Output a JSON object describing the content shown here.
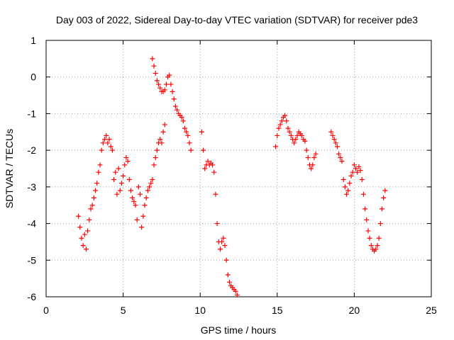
{
  "chart_data": {
    "type": "scatter",
    "title": "Day 003 of 2022, Sidereal Day-to-day VTEC variation (SDTVAR) for receiver pde3",
    "xlabel": "GPS time / hours",
    "ylabel": "SDTVAR / TECUs",
    "xlim": [
      0,
      25
    ],
    "ylim": [
      -6,
      1
    ],
    "x_ticks": [
      0,
      5,
      10,
      15,
      20,
      25
    ],
    "x_tick_labels": [
      "0",
      "5",
      "10",
      "15",
      "20",
      "25"
    ],
    "y_ticks": [
      1,
      0,
      -1,
      -2,
      -3,
      -4,
      -5,
      -6
    ],
    "y_tick_labels": [
      "1",
      "0",
      "-1",
      "-2",
      "-3",
      "-4",
      "-5",
      "-6"
    ],
    "grid": true,
    "marker": "+",
    "color": "#ff0000",
    "series": [
      {
        "name": "SDTVAR",
        "points": [
          [
            2.1,
            -3.8
          ],
          [
            2.2,
            -4.1
          ],
          [
            2.3,
            -4.4
          ],
          [
            2.4,
            -4.6
          ],
          [
            2.5,
            -4.3
          ],
          [
            2.6,
            -4.7
          ],
          [
            2.7,
            -4.2
          ],
          [
            2.8,
            -3.9
          ],
          [
            2.9,
            -3.6
          ],
          [
            3.0,
            -3.5
          ],
          [
            3.1,
            -3.3
          ],
          [
            3.2,
            -3.1
          ],
          [
            3.3,
            -2.9
          ],
          [
            3.4,
            -2.6
          ],
          [
            3.5,
            -2.4
          ],
          [
            3.6,
            -2.0
          ],
          [
            3.7,
            -1.8
          ],
          [
            3.8,
            -1.7
          ],
          [
            3.9,
            -1.6
          ],
          [
            4.0,
            -1.8
          ],
          [
            4.1,
            -1.7
          ],
          [
            4.2,
            -1.9
          ],
          [
            4.3,
            -2.0
          ],
          [
            4.4,
            -2.8
          ],
          [
            4.5,
            -2.6
          ],
          [
            4.6,
            -3.2
          ],
          [
            4.7,
            -2.5
          ],
          [
            4.8,
            -3.1
          ],
          [
            4.9,
            -2.9
          ],
          [
            5.0,
            -2.7
          ],
          [
            5.1,
            -2.4
          ],
          [
            5.2,
            -2.2
          ],
          [
            5.3,
            -2.3
          ],
          [
            5.4,
            -2.8
          ],
          [
            5.5,
            -3.1
          ],
          [
            5.6,
            -3.3
          ],
          [
            5.7,
            -3.4
          ],
          [
            5.8,
            -3.5
          ],
          [
            5.9,
            -3.9
          ],
          [
            6.0,
            -3.0
          ],
          [
            6.1,
            -3.2
          ],
          [
            6.2,
            -4.1
          ],
          [
            6.3,
            -3.8
          ],
          [
            6.4,
            -3.5
          ],
          [
            6.5,
            -3.3
          ],
          [
            6.6,
            -3.1
          ],
          [
            6.7,
            -3.0
          ],
          [
            6.8,
            -2.9
          ],
          [
            6.9,
            -2.8
          ],
          [
            7.0,
            -2.4
          ],
          [
            7.1,
            -2.2
          ],
          [
            7.2,
            -2.0
          ],
          [
            7.3,
            -1.8
          ],
          [
            7.4,
            -1.7
          ],
          [
            7.5,
            -1.8
          ],
          [
            7.6,
            -1.5
          ],
          [
            7.7,
            -1.3
          ],
          [
            6.9,
            0.5
          ],
          [
            7.0,
            0.3
          ],
          [
            7.1,
            0.1
          ],
          [
            7.2,
            -0.1
          ],
          [
            7.3,
            -0.2
          ],
          [
            7.4,
            -0.3
          ],
          [
            7.5,
            -0.4
          ],
          [
            7.6,
            -0.4
          ],
          [
            7.7,
            -0.35
          ],
          [
            7.8,
            -0.2
          ],
          [
            7.9,
            0.0
          ],
          [
            8.0,
            0.05
          ],
          [
            8.1,
            -0.2
          ],
          [
            8.2,
            -0.4
          ],
          [
            8.3,
            -0.6
          ],
          [
            8.4,
            -0.8
          ],
          [
            8.5,
            -0.9
          ],
          [
            8.6,
            -1.0
          ],
          [
            8.7,
            -1.05
          ],
          [
            8.8,
            -1.1
          ],
          [
            8.9,
            -1.2
          ],
          [
            9.0,
            -1.4
          ],
          [
            9.1,
            -1.5
          ],
          [
            9.2,
            -1.6
          ],
          [
            9.3,
            -1.8
          ],
          [
            9.4,
            -2.0
          ],
          [
            10.1,
            -1.5
          ],
          [
            10.2,
            -2.0
          ],
          [
            10.3,
            -2.5
          ],
          [
            10.4,
            -2.4
          ],
          [
            10.5,
            -2.3
          ],
          [
            10.6,
            -2.4
          ],
          [
            10.7,
            -2.35
          ],
          [
            10.8,
            -2.4
          ],
          [
            10.9,
            -2.6
          ],
          [
            11.0,
            -3.2
          ],
          [
            11.1,
            -4.0
          ],
          [
            11.2,
            -4.5
          ],
          [
            11.3,
            -4.7
          ],
          [
            11.4,
            -4.5
          ],
          [
            11.5,
            -4.4
          ],
          [
            11.6,
            -4.6
          ],
          [
            11.7,
            -5.0
          ],
          [
            11.8,
            -5.4
          ],
          [
            11.9,
            -5.6
          ],
          [
            12.0,
            -5.7
          ],
          [
            12.1,
            -5.75
          ],
          [
            12.2,
            -5.8
          ],
          [
            12.3,
            -5.85
          ],
          [
            12.4,
            -5.95
          ],
          [
            14.9,
            -1.9
          ],
          [
            15.0,
            -1.6
          ],
          [
            15.1,
            -1.4
          ],
          [
            15.2,
            -1.3
          ],
          [
            15.3,
            -1.2
          ],
          [
            15.4,
            -1.1
          ],
          [
            15.5,
            -1.05
          ],
          [
            15.6,
            -1.2
          ],
          [
            15.7,
            -1.4
          ],
          [
            15.8,
            -1.5
          ],
          [
            15.9,
            -1.6
          ],
          [
            16.0,
            -1.7
          ],
          [
            16.1,
            -1.8
          ],
          [
            16.2,
            -1.7
          ],
          [
            16.3,
            -1.6
          ],
          [
            16.4,
            -1.5
          ],
          [
            16.5,
            -1.55
          ],
          [
            16.6,
            -1.6
          ],
          [
            16.7,
            -1.7
          ],
          [
            16.8,
            -1.75
          ],
          [
            16.9,
            -2.0
          ],
          [
            17.0,
            -2.2
          ],
          [
            17.1,
            -2.4
          ],
          [
            17.2,
            -2.5
          ],
          [
            17.3,
            -2.4
          ],
          [
            17.4,
            -2.2
          ],
          [
            17.5,
            -2.1
          ],
          [
            18.5,
            -1.5
          ],
          [
            18.6,
            -1.6
          ],
          [
            18.7,
            -1.7
          ],
          [
            18.8,
            -1.8
          ],
          [
            18.9,
            -1.9
          ],
          [
            19.0,
            -2.1
          ],
          [
            19.1,
            -2.2
          ],
          [
            19.2,
            -2.3
          ],
          [
            19.3,
            -2.8
          ],
          [
            19.4,
            -3.0
          ],
          [
            19.5,
            -3.2
          ],
          [
            19.6,
            -3.1
          ],
          [
            19.7,
            -2.9
          ],
          [
            19.8,
            -2.7
          ],
          [
            19.9,
            -2.6
          ],
          [
            20.0,
            -2.4
          ],
          [
            20.1,
            -2.5
          ],
          [
            20.2,
            -2.6
          ],
          [
            20.3,
            -2.45
          ],
          [
            20.4,
            -2.55
          ],
          [
            20.5,
            -2.8
          ],
          [
            20.6,
            -3.2
          ],
          [
            20.7,
            -3.6
          ],
          [
            20.8,
            -3.9
          ],
          [
            20.9,
            -4.2
          ],
          [
            21.0,
            -4.4
          ],
          [
            21.1,
            -4.6
          ],
          [
            21.2,
            -4.7
          ],
          [
            21.3,
            -4.75
          ],
          [
            21.4,
            -4.7
          ],
          [
            21.5,
            -4.6
          ],
          [
            21.6,
            -4.4
          ],
          [
            21.7,
            -4.0
          ],
          [
            21.8,
            -3.6
          ],
          [
            21.9,
            -3.3
          ],
          [
            22.0,
            -3.1
          ]
        ]
      }
    ]
  }
}
